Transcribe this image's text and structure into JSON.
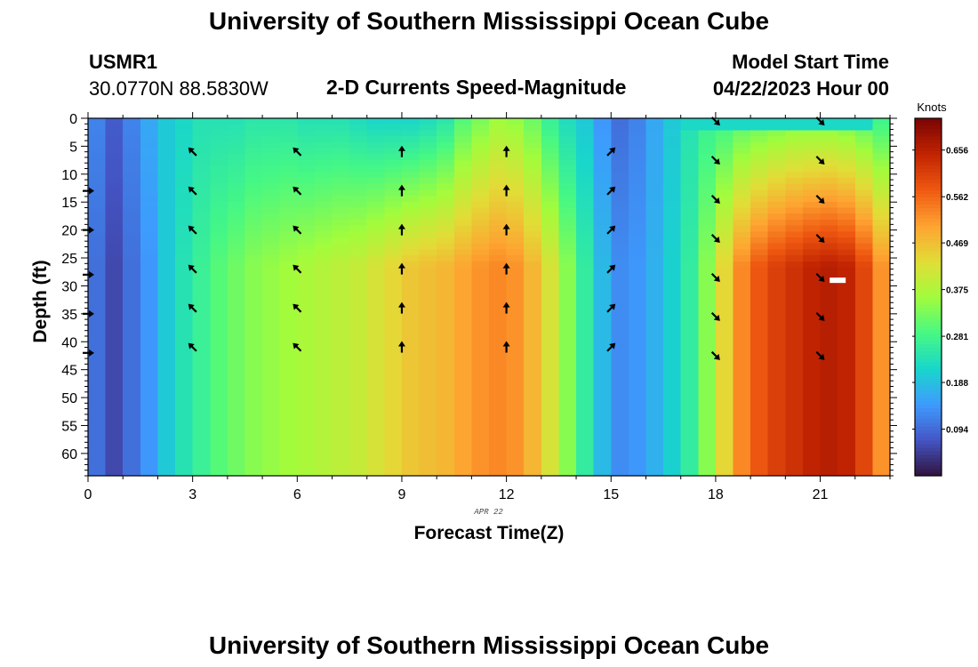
{
  "header": {
    "title": "University of Southern Mississippi Ocean Cube",
    "station_id": "USMR1",
    "station_coords": "30.0770N  88.5830W",
    "plot_title": "2-D Currents Speed-Magnitude",
    "model_start_label": "Model Start Time",
    "model_start_value": "04/22/2023 Hour 00"
  },
  "footer": {
    "title": "University of Southern Mississippi Ocean Cube"
  },
  "chart_data": {
    "type": "heatmap",
    "title": "2-D Currents Speed-Magnitude",
    "xlabel": "Forecast Time(Z)",
    "ylabel": "Depth (ft)",
    "date_label": "APR 22",
    "xlim": [
      0,
      23
    ],
    "ylim": [
      0,
      64
    ],
    "y_inverted": true,
    "x_ticks": [
      0,
      3,
      6,
      9,
      12,
      15,
      18,
      21
    ],
    "y_ticks": [
      0,
      5,
      10,
      15,
      20,
      25,
      30,
      35,
      40,
      45,
      50,
      55,
      60
    ],
    "colorbar": {
      "label": "Knots",
      "min": 0.0,
      "max": 0.72,
      "tick_values": [
        0.094,
        0.188,
        0.281,
        0.375,
        0.469,
        0.562,
        0.656
      ],
      "tick_labels": [
        "0.094",
        "0.188",
        "0.281",
        "0.375",
        "0.469",
        "0.562",
        "0.656"
      ],
      "colormap": [
        "#30123b",
        "#4454c4",
        "#3e9bfe",
        "#18d6cb",
        "#46f884",
        "#a2fc3c",
        "#e1dd37",
        "#fea331",
        "#ef5911",
        "#c22402",
        "#7a0403"
      ]
    },
    "speed_profiles": [
      {
        "hour": 0.0,
        "surface": 0.12,
        "deep": 0.1
      },
      {
        "hour": 0.5,
        "surface": 0.08,
        "deep": 0.06
      },
      {
        "hour": 1.0,
        "surface": 0.12,
        "deep": 0.1
      },
      {
        "hour": 1.5,
        "surface": 0.16,
        "deep": 0.14
      },
      {
        "hour": 2.0,
        "surface": 0.2,
        "deep": 0.2
      },
      {
        "hour": 2.5,
        "surface": 0.22,
        "deep": 0.24
      },
      {
        "hour": 3.0,
        "surface": 0.24,
        "deep": 0.27
      },
      {
        "hour": 3.5,
        "surface": 0.24,
        "deep": 0.3
      },
      {
        "hour": 4.0,
        "surface": 0.24,
        "deep": 0.32
      },
      {
        "hour": 4.5,
        "surface": 0.25,
        "deep": 0.34
      },
      {
        "hour": 5.0,
        "surface": 0.25,
        "deep": 0.35
      },
      {
        "hour": 5.5,
        "surface": 0.25,
        "deep": 0.36
      },
      {
        "hour": 6.0,
        "surface": 0.24,
        "deep": 0.37
      },
      {
        "hour": 6.5,
        "surface": 0.24,
        "deep": 0.38
      },
      {
        "hour": 7.0,
        "surface": 0.24,
        "deep": 0.39
      },
      {
        "hour": 7.5,
        "surface": 0.23,
        "deep": 0.4
      },
      {
        "hour": 8.0,
        "surface": 0.22,
        "deep": 0.42
      },
      {
        "hour": 8.5,
        "surface": 0.22,
        "deep": 0.44
      },
      {
        "hour": 9.0,
        "surface": 0.22,
        "deep": 0.46
      },
      {
        "hour": 9.5,
        "surface": 0.23,
        "deep": 0.47
      },
      {
        "hour": 10.0,
        "surface": 0.25,
        "deep": 0.48
      },
      {
        "hour": 10.5,
        "surface": 0.3,
        "deep": 0.5
      },
      {
        "hour": 11.0,
        "surface": 0.33,
        "deep": 0.52
      },
      {
        "hour": 11.5,
        "surface": 0.36,
        "deep": 0.53
      },
      {
        "hour": 12.0,
        "surface": 0.35,
        "deep": 0.52
      },
      {
        "hour": 12.5,
        "surface": 0.32,
        "deep": 0.48
      },
      {
        "hour": 13.0,
        "surface": 0.27,
        "deep": 0.42
      },
      {
        "hour": 13.5,
        "surface": 0.23,
        "deep": 0.34
      },
      {
        "hour": 14.0,
        "surface": 0.2,
        "deep": 0.26
      },
      {
        "hour": 14.5,
        "surface": 0.14,
        "deep": 0.18
      },
      {
        "hour": 15.0,
        "surface": 0.1,
        "deep": 0.13
      },
      {
        "hour": 15.5,
        "surface": 0.12,
        "deep": 0.14
      },
      {
        "hour": 16.0,
        "surface": 0.16,
        "deep": 0.17
      },
      {
        "hour": 16.5,
        "surface": 0.2,
        "deep": 0.21
      },
      {
        "hour": 17.0,
        "surface": 0.24,
        "deep": 0.26
      },
      {
        "hour": 17.5,
        "surface": 0.27,
        "deep": 0.34
      },
      {
        "hour": 18.0,
        "surface": 0.28,
        "deep": 0.44
      },
      {
        "hour": 18.5,
        "surface": 0.3,
        "deep": 0.53
      },
      {
        "hour": 19.0,
        "surface": 0.31,
        "deep": 0.58
      },
      {
        "hour": 19.5,
        "surface": 0.32,
        "deep": 0.61
      },
      {
        "hour": 20.0,
        "surface": 0.33,
        "deep": 0.63
      },
      {
        "hour": 20.5,
        "surface": 0.33,
        "deep": 0.65
      },
      {
        "hour": 21.0,
        "surface": 0.33,
        "deep": 0.66
      },
      {
        "hour": 21.5,
        "surface": 0.32,
        "deep": 0.65
      },
      {
        "hour": 22.0,
        "surface": 0.3,
        "deep": 0.6
      },
      {
        "hour": 22.5,
        "surface": 0.28,
        "deep": 0.52
      }
    ],
    "arrows": [
      {
        "hour": 0,
        "direction": "east",
        "depths": [
          13,
          20,
          28,
          35,
          42
        ]
      },
      {
        "hour": 3,
        "direction": "northwest",
        "depths": [
          6,
          13,
          20,
          27,
          34,
          41
        ]
      },
      {
        "hour": 6,
        "direction": "northwest",
        "depths": [
          6,
          13,
          20,
          27,
          34,
          41
        ]
      },
      {
        "hour": 9,
        "direction": "north",
        "depths": [
          6,
          13,
          20,
          27,
          34,
          41
        ]
      },
      {
        "hour": 12,
        "direction": "north",
        "depths": [
          6,
          13,
          20,
          27,
          34,
          41
        ]
      },
      {
        "hour": 15,
        "direction": "northeast",
        "depths": [
          6,
          13,
          20,
          27,
          34,
          41
        ]
      },
      {
        "hour": 18,
        "direction": "southeast",
        "depths": [
          0.5,
          7.5,
          14.5,
          21.5,
          28.5,
          35.5,
          42.5
        ]
      },
      {
        "hour": 21,
        "direction": "southeast",
        "depths": [
          0.5,
          7.5,
          14.5,
          21.5,
          28.5,
          35.5,
          42.5
        ]
      }
    ],
    "scale_arrow": {
      "hour": 21.5,
      "depth": 29
    }
  }
}
